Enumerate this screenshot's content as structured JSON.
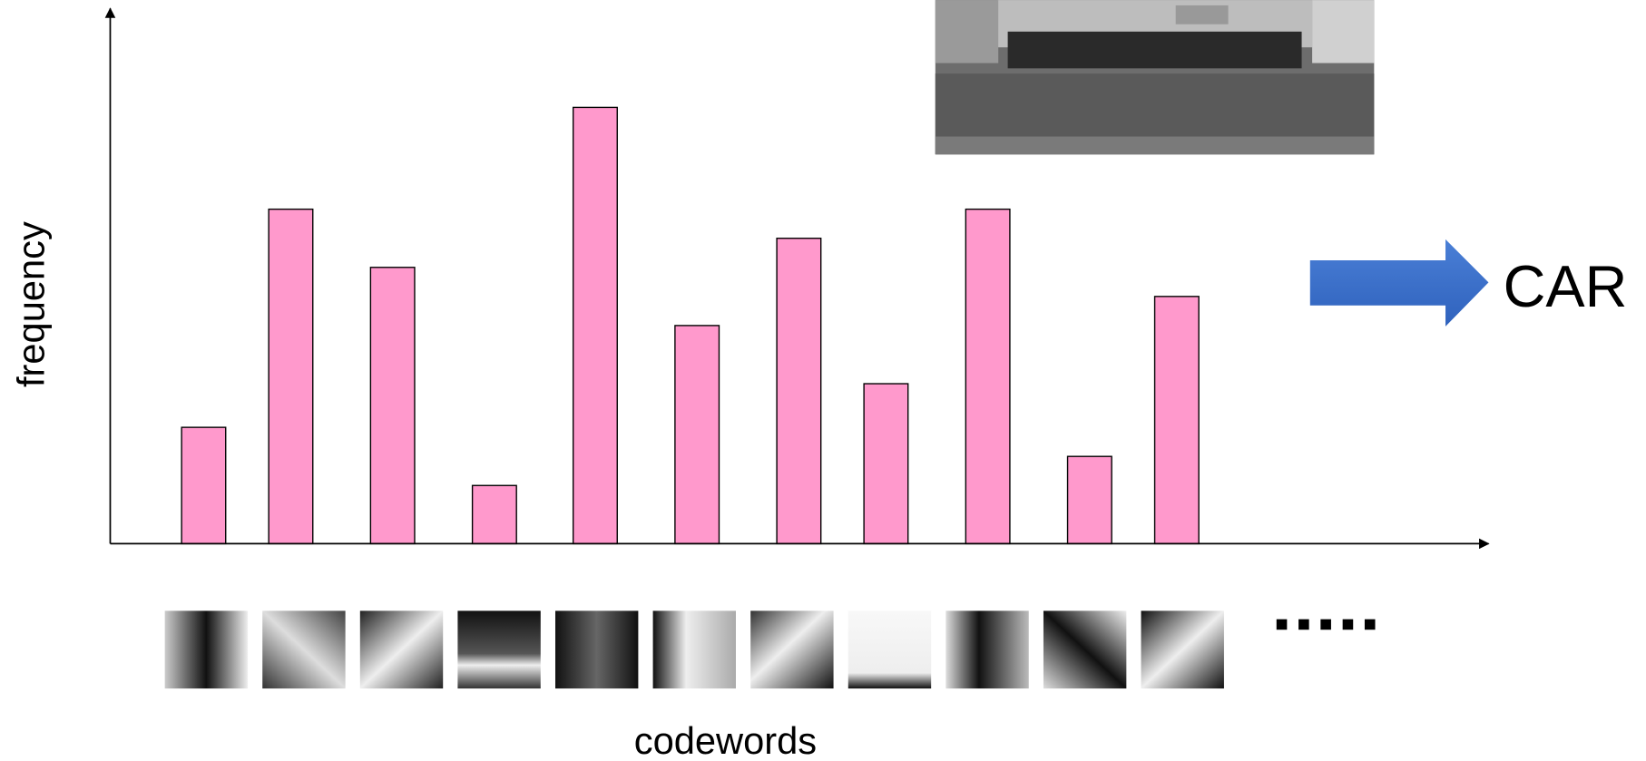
{
  "chart_data": {
    "type": "bar",
    "values": [
      2,
      5.75,
      4.75,
      1,
      7.5,
      3.75,
      5.25,
      2.75,
      5.75,
      1.5,
      4.25
    ],
    "color": "#ff99cc",
    "ylim": [
      0,
      9.2
    ],
    "x_label": "codewords",
    "y_label": "frequency",
    "annotation": "CAR"
  }
}
